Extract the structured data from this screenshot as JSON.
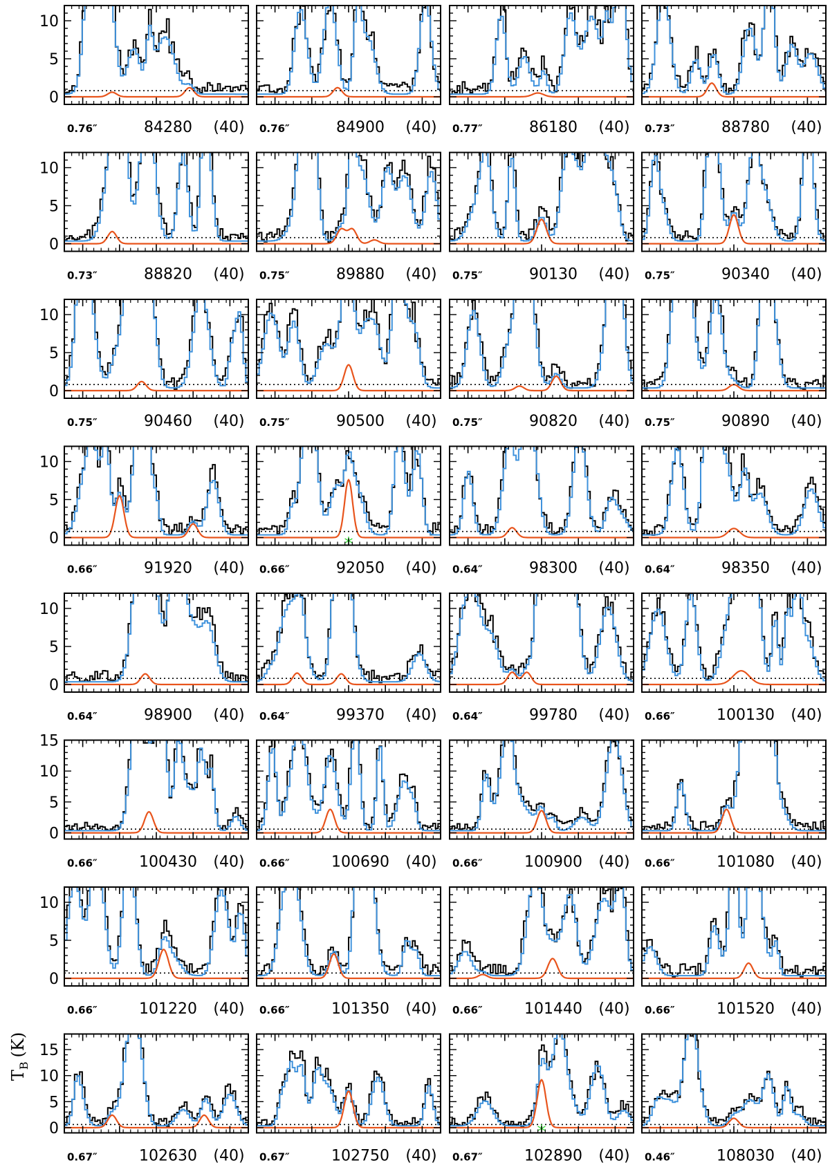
{
  "figure": {
    "ylabel": "T",
    "ylabel_sub": "B",
    "ylabel_unit": "(K)"
  },
  "colors": {
    "observed": "#000000",
    "model_total": "#3f92dc",
    "model_species": "#e8541c",
    "marker": "#33dd33",
    "rms": "#000000"
  },
  "chart_data": {
    "type": "line",
    "layout": "grid 8 rows x 4 columns",
    "panels": [
      {
        "freq": "84280",
        "width": "(40)",
        "beam": "0.76″",
        "ylim": [
          -1,
          12
        ],
        "yticks": [
          0,
          5,
          10
        ],
        "rms": 0.8,
        "species_peaks": [
          {
            "x": -12,
            "h": 0.6,
            "w": 1.2
          },
          {
            "x": 9,
            "h": 1.2,
            "w": 1.2
          }
        ],
        "marker": null
      },
      {
        "freq": "84900",
        "width": "(40)",
        "beam": "0.76″",
        "ylim": [
          -1,
          12
        ],
        "yticks": [
          0,
          5,
          10
        ],
        "rms": 0.8,
        "species_peaks": [
          {
            "x": -3,
            "h": 1.2,
            "w": 1.2
          }
        ],
        "marker": null
      },
      {
        "freq": "86180",
        "width": "(40)",
        "beam": "0.77″",
        "ylim": [
          -1,
          12
        ],
        "yticks": [
          0,
          5,
          10
        ],
        "rms": 0.8,
        "species_peaks": [
          {
            "x": -1,
            "h": 0.5,
            "w": 1.5
          }
        ],
        "marker": null
      },
      {
        "freq": "88780",
        "width": "(40)",
        "beam": "0.73″",
        "ylim": [
          -1,
          12
        ],
        "yticks": [
          0,
          5,
          10
        ],
        "rms": 0.8,
        "species_peaks": [
          {
            "x": -6,
            "h": 1.8,
            "w": 1.2
          }
        ],
        "marker": null
      },
      {
        "freq": "88820",
        "width": "(40)",
        "beam": "0.73″",
        "ylim": [
          -1,
          12
        ],
        "yticks": [
          0,
          5,
          10
        ],
        "rms": 0.8,
        "species_peaks": [
          {
            "x": -12,
            "h": 1.6,
            "w": 1.2
          }
        ],
        "marker": null
      },
      {
        "freq": "89880",
        "width": "(40)",
        "beam": "0.75″",
        "ylim": [
          -1,
          12
        ],
        "yticks": [
          0,
          5,
          10
        ],
        "rms": 0.8,
        "species_peaks": [
          {
            "x": -2,
            "h": 1.9,
            "w": 1.2
          },
          {
            "x": 1,
            "h": 1.9,
            "w": 1.2
          },
          {
            "x": 7,
            "h": 0.5,
            "w": 1.2
          }
        ],
        "marker": null
      },
      {
        "freq": "90130",
        "width": "(40)",
        "beam": "0.75″",
        "ylim": [
          -1,
          12
        ],
        "yticks": [
          0,
          5,
          10
        ],
        "rms": 0.8,
        "species_peaks": [
          {
            "x": 0,
            "h": 3.2,
            "w": 1.3
          }
        ],
        "marker": null
      },
      {
        "freq": "90340",
        "width": "(40)",
        "beam": "0.75″",
        "ylim": [
          -1,
          12
        ],
        "yticks": [
          0,
          5,
          10
        ],
        "rms": 0.8,
        "species_peaks": [
          {
            "x": 0,
            "h": 3.8,
            "w": 1.2
          }
        ],
        "marker": null
      },
      {
        "freq": "90460",
        "width": "(40)",
        "beam": "0.75″",
        "ylim": [
          -1,
          12
        ],
        "yticks": [
          0,
          5,
          10
        ],
        "rms": 0.8,
        "species_peaks": [
          {
            "x": -4,
            "h": 1.2,
            "w": 1.2
          }
        ],
        "marker": null
      },
      {
        "freq": "90500",
        "width": "(40)",
        "beam": "0.75″",
        "ylim": [
          -1,
          12
        ],
        "yticks": [
          0,
          5,
          10
        ],
        "rms": 0.8,
        "species_peaks": [
          {
            "x": 0,
            "h": 3.4,
            "w": 1.2
          }
        ],
        "marker": null
      },
      {
        "freq": "90820",
        "width": "(40)",
        "beam": "0.75″",
        "ylim": [
          -1,
          12
        ],
        "yticks": [
          0,
          5,
          10
        ],
        "rms": 0.8,
        "species_peaks": [
          {
            "x": -6,
            "h": 0.6,
            "w": 1.2
          },
          {
            "x": 4,
            "h": 1.9,
            "w": 1.2
          }
        ],
        "marker": null
      },
      {
        "freq": "90890",
        "width": "(40)",
        "beam": "0.75″",
        "ylim": [
          -1,
          12
        ],
        "yticks": [
          0,
          5,
          10
        ],
        "rms": 0.8,
        "species_peaks": [
          {
            "x": 0,
            "h": 0.8,
            "w": 1.3
          }
        ],
        "marker": null
      },
      {
        "freq": "91920",
        "width": "(40)",
        "beam": "0.66″",
        "ylim": [
          -1,
          12
        ],
        "yticks": [
          0,
          5,
          10
        ],
        "rms": 0.8,
        "species_peaks": [
          {
            "x": -10,
            "h": 5.5,
            "w": 1.2
          },
          {
            "x": 10,
            "h": 1.8,
            "w": 1.2
          }
        ],
        "marker": null
      },
      {
        "freq": "92050",
        "width": "(40)",
        "beam": "0.66″",
        "ylim": [
          -1,
          12
        ],
        "yticks": [
          0,
          5,
          10
        ],
        "rms": 0.8,
        "species_peaks": [
          {
            "x": 0,
            "h": 7.6,
            "w": 1.1
          }
        ],
        "marker": {
          "x": 0
        }
      },
      {
        "freq": "98300",
        "width": "(40)",
        "beam": "0.64″",
        "ylim": [
          -1,
          12
        ],
        "yticks": [
          0,
          5,
          10
        ],
        "rms": 0.8,
        "species_peaks": [
          {
            "x": -8,
            "h": 1.3,
            "w": 1.2
          }
        ],
        "marker": null
      },
      {
        "freq": "98350",
        "width": "(40)",
        "beam": "0.64″",
        "ylim": [
          -1,
          12
        ],
        "yticks": [
          0,
          5,
          10
        ],
        "rms": 0.8,
        "species_peaks": [
          {
            "x": 0,
            "h": 1.2,
            "w": 1.6
          }
        ],
        "marker": null
      },
      {
        "freq": "98900",
        "width": "(40)",
        "beam": "0.64″",
        "ylim": [
          -1,
          12
        ],
        "yticks": [
          0,
          5,
          10
        ],
        "rms": 0.8,
        "species_peaks": [
          {
            "x": -3,
            "h": 1.4,
            "w": 1.2
          }
        ],
        "marker": null
      },
      {
        "freq": "99370",
        "width": "(40)",
        "beam": "0.64″",
        "ylim": [
          -1,
          12
        ],
        "yticks": [
          0,
          5,
          10
        ],
        "rms": 0.8,
        "species_peaks": [
          {
            "x": -14,
            "h": 1.5,
            "w": 1.2
          },
          {
            "x": -2,
            "h": 1.4,
            "w": 1.2
          }
        ],
        "marker": null
      },
      {
        "freq": "99780",
        "width": "(40)",
        "beam": "0.64″",
        "ylim": [
          -1,
          12
        ],
        "yticks": [
          0,
          5,
          10
        ],
        "rms": 0.8,
        "species_peaks": [
          {
            "x": -8,
            "h": 1.6,
            "w": 1.2
          },
          {
            "x": -4,
            "h": 1.6,
            "w": 1.2
          }
        ],
        "marker": null
      },
      {
        "freq": "100130",
        "width": "(40)",
        "beam": "0.66″",
        "ylim": [
          -1,
          12
        ],
        "yticks": [
          0,
          5,
          10
        ],
        "rms": 0.8,
        "species_peaks": [
          {
            "x": 2,
            "h": 1.8,
            "w": 2.2
          }
        ],
        "marker": null
      },
      {
        "freq": "100430",
        "width": "(40)",
        "beam": "0.66″",
        "ylim": [
          -1,
          15
        ],
        "yticks": [
          0,
          5,
          10,
          15
        ],
        "rms": 0.6,
        "species_peaks": [
          {
            "x": -2,
            "h": 3.4,
            "w": 1.2
          }
        ],
        "marker": null
      },
      {
        "freq": "100690",
        "width": "(40)",
        "beam": "0.66″",
        "ylim": [
          -1,
          15
        ],
        "yticks": [
          0,
          5,
          10,
          15
        ],
        "rms": 0.6,
        "species_peaks": [
          {
            "x": -5,
            "h": 3.8,
            "w": 1.2
          }
        ],
        "marker": null
      },
      {
        "freq": "100900",
        "width": "(40)",
        "beam": "0.66″",
        "ylim": [
          -1,
          15
        ],
        "yticks": [
          0,
          5,
          10,
          15
        ],
        "rms": 0.6,
        "species_peaks": [
          {
            "x": 0,
            "h": 3.6,
            "w": 1.2
          }
        ],
        "marker": null
      },
      {
        "freq": "101080",
        "width": "(40)",
        "beam": "0.66″",
        "ylim": [
          -1,
          15
        ],
        "yticks": [
          0,
          5,
          10,
          15
        ],
        "rms": 0.6,
        "species_peaks": [
          {
            "x": -2,
            "h": 3.8,
            "w": 1.2
          }
        ],
        "marker": null
      },
      {
        "freq": "101220",
        "width": "(40)",
        "beam": "0.66″",
        "ylim": [
          -1,
          12
        ],
        "yticks": [
          0,
          5,
          10
        ],
        "rms": 0.7,
        "species_peaks": [
          {
            "x": 2,
            "h": 3.8,
            "w": 1.3
          }
        ],
        "marker": null
      },
      {
        "freq": "101350",
        "width": "(40)",
        "beam": "0.66″",
        "ylim": [
          -1,
          12
        ],
        "yticks": [
          0,
          5,
          10
        ],
        "rms": 0.7,
        "species_peaks": [
          {
            "x": -4,
            "h": 3.2,
            "w": 1.2
          }
        ],
        "marker": null
      },
      {
        "freq": "101440",
        "width": "(40)",
        "beam": "0.66″",
        "ylim": [
          -1,
          12
        ],
        "yticks": [
          0,
          5,
          10
        ],
        "rms": 0.7,
        "species_peaks": [
          {
            "x": -16,
            "h": 0.5,
            "w": 1.2
          },
          {
            "x": 3,
            "h": 2.6,
            "w": 1.3
          }
        ],
        "marker": null
      },
      {
        "freq": "101520",
        "width": "(40)",
        "beam": "0.66″",
        "ylim": [
          -1,
          12
        ],
        "yticks": [
          0,
          5,
          10
        ],
        "rms": 0.7,
        "species_peaks": [
          {
            "x": 4,
            "h": 2.0,
            "w": 1.2
          }
        ],
        "marker": null
      },
      {
        "freq": "102630",
        "width": "(40)",
        "beam": "0.67″",
        "ylim": [
          -1,
          18
        ],
        "yticks": [
          0,
          5,
          10,
          15
        ],
        "rms": 0.6,
        "species_peaks": [
          {
            "x": -12,
            "h": 2.4,
            "w": 1.2
          },
          {
            "x": 13,
            "h": 2.4,
            "w": 1.2
          }
        ],
        "marker": null
      },
      {
        "freq": "102750",
        "width": "(40)",
        "beam": "0.67″",
        "ylim": [
          -1,
          18
        ],
        "yticks": [
          0,
          5,
          10,
          15
        ],
        "rms": 0.6,
        "species_peaks": [
          {
            "x": 0,
            "h": 7.0,
            "w": 1.2
          }
        ],
        "marker": null
      },
      {
        "freq": "102890",
        "width": "(40)",
        "beam": "0.67″",
        "ylim": [
          -1,
          18
        ],
        "yticks": [
          0,
          5,
          10,
          15
        ],
        "rms": 0.6,
        "species_peaks": [
          {
            "x": 0,
            "h": 9.2,
            "w": 1.2
          }
        ],
        "marker": {
          "x": 0
        }
      },
      {
        "freq": "108030",
        "width": "(40)",
        "beam": "0.46″",
        "ylim": [
          -1,
          18
        ],
        "yticks": [
          0,
          5,
          10,
          15
        ],
        "rms": 0.6,
        "species_peaks": [
          {
            "x": 0,
            "h": 1.8,
            "w": 1.3
          }
        ],
        "marker": null
      }
    ]
  }
}
